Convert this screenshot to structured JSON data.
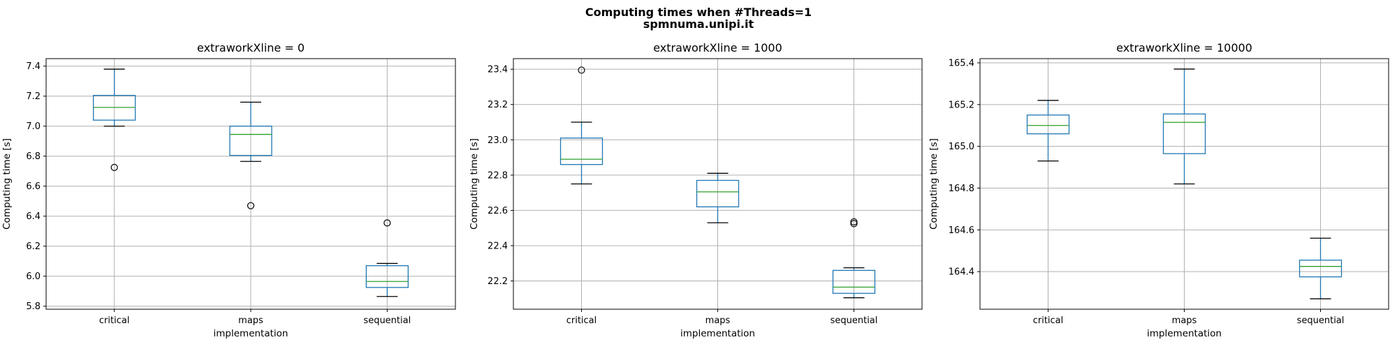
{
  "chart_data": {
    "type": "boxplot",
    "title": "Computing times when #Threads=1",
    "subtitle": "spmnuma.unipi.it",
    "grid": true,
    "box_color": "#1f77b4",
    "median_color": "#2ca02c",
    "panels": [
      {
        "title": "extraworkXline = 0",
        "xlabel": "implementation",
        "ylabel": "Computing time [s]",
        "ylim": [
          5.78,
          7.45
        ],
        "yticks": [
          "5.8",
          "6.0",
          "6.2",
          "6.4",
          "6.6",
          "6.8",
          "7.0",
          "7.2",
          "7.4"
        ],
        "categories": [
          "critical",
          "maps",
          "sequential"
        ],
        "boxes": [
          {
            "category": "critical",
            "whisker_low": 7.0,
            "q1": 7.04,
            "median": 7.125,
            "q3": 7.205,
            "whisker_high": 7.38,
            "outliers": [
              6.725
            ]
          },
          {
            "category": "maps",
            "whisker_low": 6.765,
            "q1": 6.805,
            "median": 6.945,
            "q3": 7.0,
            "whisker_high": 7.16,
            "outliers": [
              6.47
            ]
          },
          {
            "category": "sequential",
            "whisker_low": 5.865,
            "q1": 5.925,
            "median": 5.965,
            "q3": 6.07,
            "whisker_high": 6.085,
            "outliers": [
              6.355
            ]
          }
        ]
      },
      {
        "title": "extraworkXline = 1000",
        "xlabel": "implementation",
        "ylabel": "Computing time [s]",
        "ylim": [
          22.04,
          23.46
        ],
        "yticks": [
          "22.2",
          "22.4",
          "22.6",
          "22.8",
          "23.0",
          "23.2",
          "23.4"
        ],
        "categories": [
          "critical",
          "maps",
          "sequential"
        ],
        "boxes": [
          {
            "category": "critical",
            "whisker_low": 22.75,
            "q1": 22.86,
            "median": 22.89,
            "q3": 23.01,
            "whisker_high": 23.1,
            "outliers": [
              23.395
            ]
          },
          {
            "category": "maps",
            "whisker_low": 22.53,
            "q1": 22.62,
            "median": 22.705,
            "q3": 22.77,
            "whisker_high": 22.81,
            "outliers": []
          },
          {
            "category": "sequential",
            "whisker_low": 22.105,
            "q1": 22.13,
            "median": 22.165,
            "q3": 22.26,
            "whisker_high": 22.275,
            "outliers": [
              22.525,
              22.535
            ]
          }
        ]
      },
      {
        "title": "extraworkXline = 10000",
        "xlabel": "implementation",
        "ylabel": "Computing time [s]",
        "ylim": [
          164.22,
          165.42
        ],
        "yticks": [
          "164.4",
          "164.6",
          "164.8",
          "165.0",
          "165.2",
          "165.4"
        ],
        "categories": [
          "critical",
          "maps",
          "sequential"
        ],
        "boxes": [
          {
            "category": "critical",
            "whisker_low": 164.93,
            "q1": 165.06,
            "median": 165.1,
            "q3": 165.15,
            "whisker_high": 165.22,
            "outliers": []
          },
          {
            "category": "maps",
            "whisker_low": 164.82,
            "q1": 164.965,
            "median": 165.115,
            "q3": 165.155,
            "whisker_high": 165.37,
            "outliers": []
          },
          {
            "category": "sequential",
            "whisker_low": 164.27,
            "q1": 164.375,
            "median": 164.425,
            "q3": 164.455,
            "whisker_high": 164.56,
            "outliers": []
          }
        ]
      }
    ]
  }
}
